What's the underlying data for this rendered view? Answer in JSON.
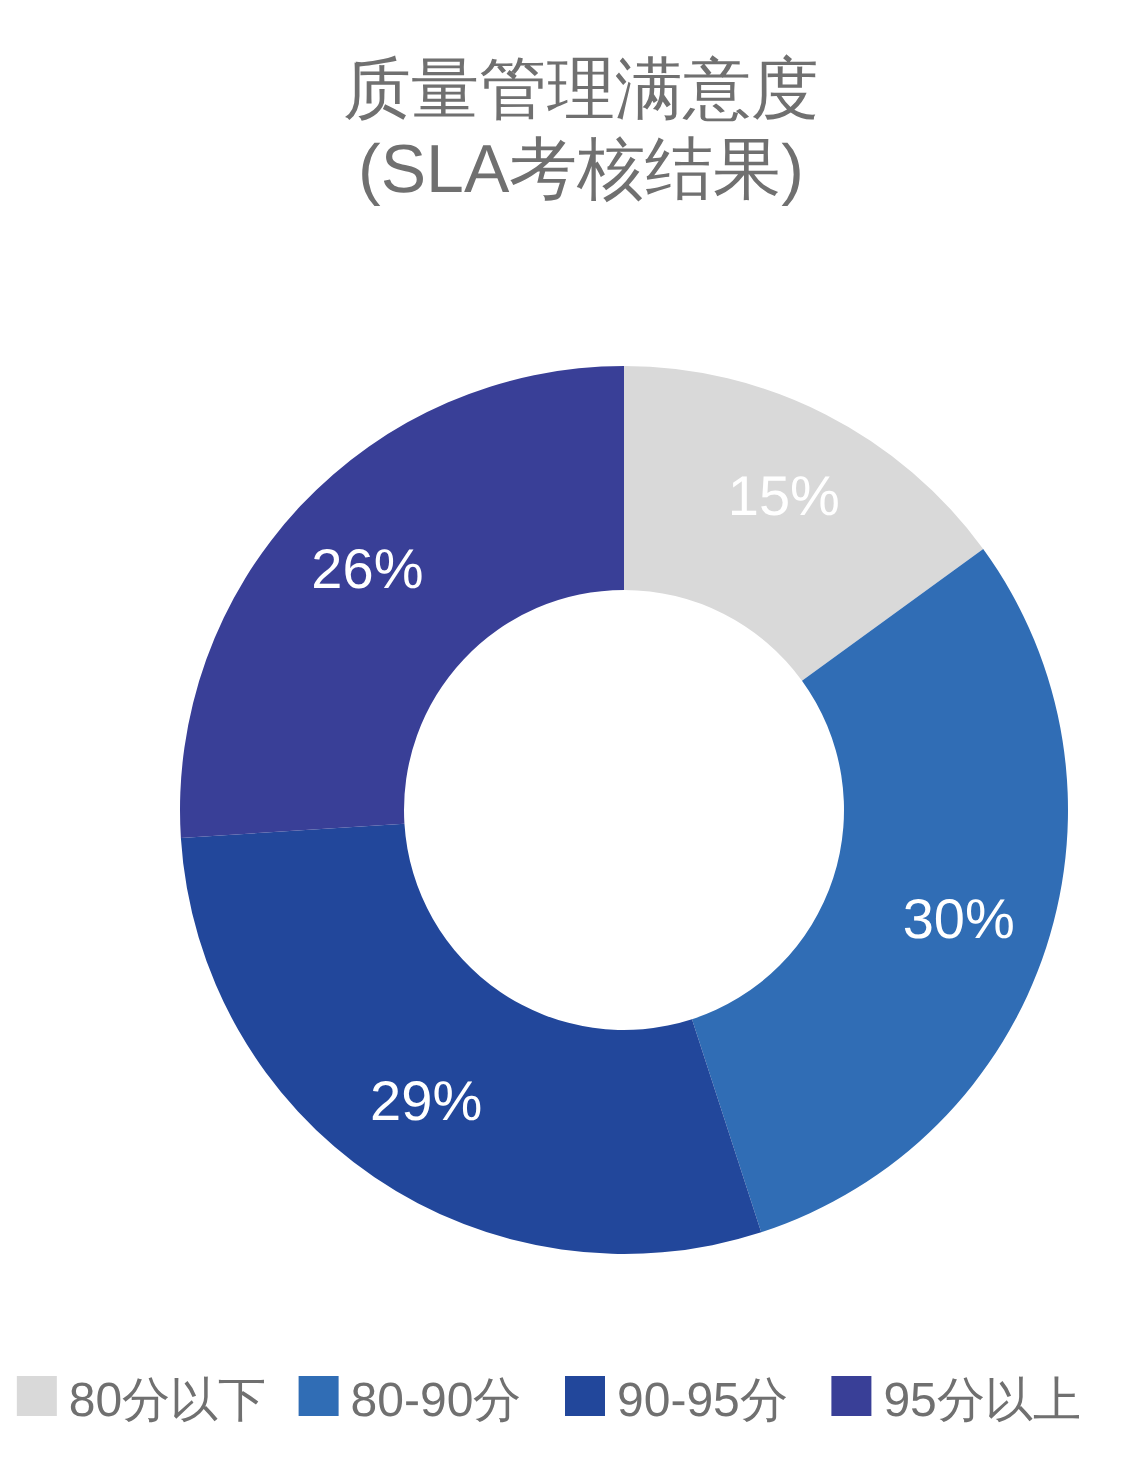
{
  "chart_data": {
    "type": "donut",
    "title": "质量管理满意度",
    "subtitle": "(SLA考核结果)",
    "categories": [
      "80分以下",
      "80-90分",
      "90-95分",
      "95分以上"
    ],
    "values": [
      15,
      30,
      29,
      26
    ],
    "colors": [
      "#d9d9d9",
      "#306db5",
      "#22479b",
      "#393f97"
    ],
    "value_labels": [
      "15%",
      "30%",
      "29%",
      "26%"
    ],
    "legend": "bottom"
  }
}
